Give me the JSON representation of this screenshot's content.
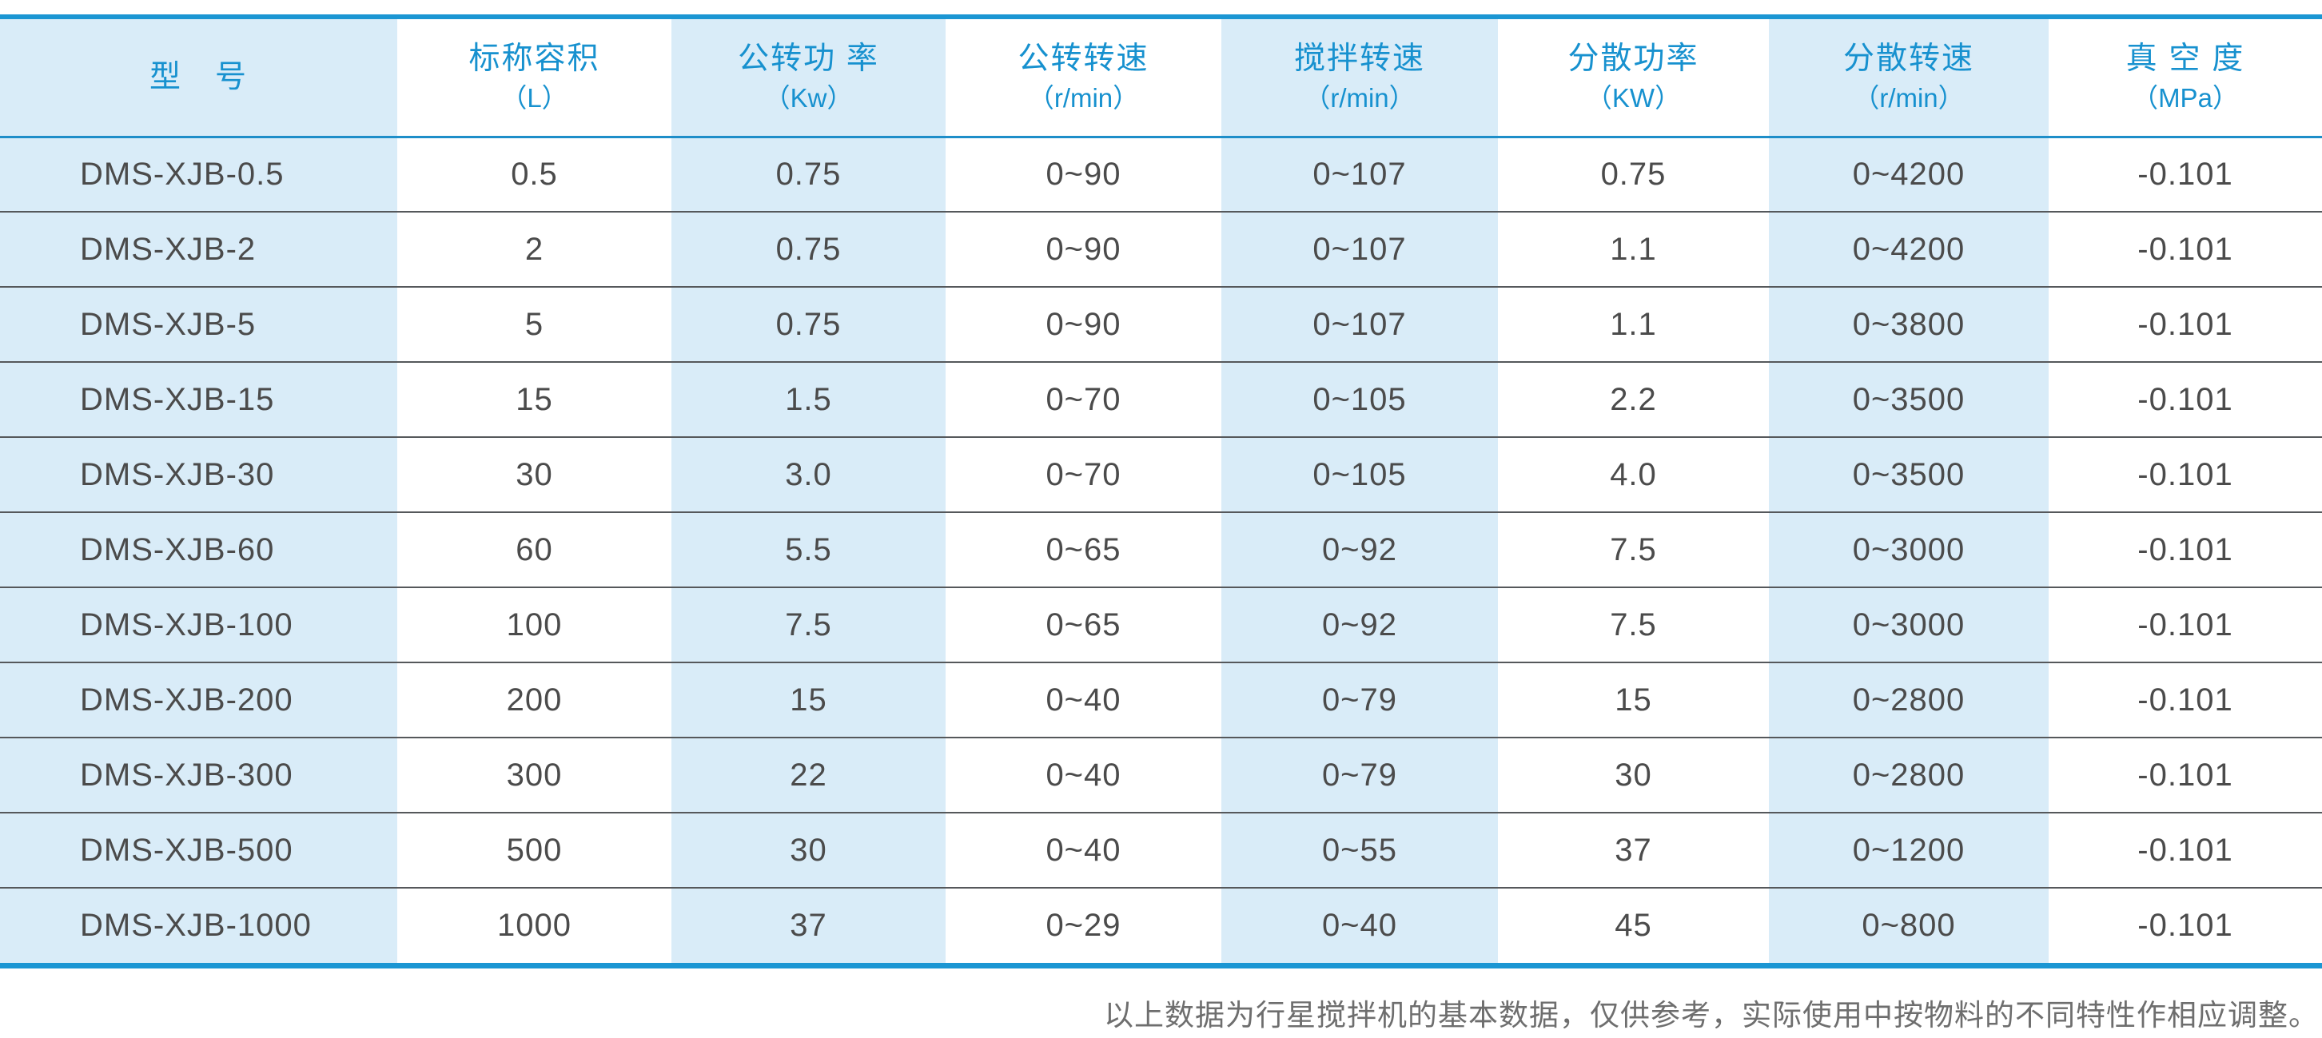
{
  "table": {
    "columns": [
      {
        "title": "型　号",
        "unit": ""
      },
      {
        "title": "标称容积",
        "unit": "（L）"
      },
      {
        "title": "公转功 率",
        "unit": "（Kw）"
      },
      {
        "title": "公转转速",
        "unit": "（r/min）"
      },
      {
        "title": "搅拌转速",
        "unit": "（r/min）"
      },
      {
        "title": "分散功率",
        "unit": "（KW）"
      },
      {
        "title": "分散转速",
        "unit": "（r/min）"
      },
      {
        "title": "真 空 度",
        "unit": "（MPa）"
      }
    ],
    "rows": [
      [
        "DMS-XJB-0.5",
        "0.5",
        "0.75",
        "0~90",
        "0~107",
        "0.75",
        "0~4200",
        "-0.101"
      ],
      [
        "DMS-XJB-2",
        "2",
        "0.75",
        "0~90",
        "0~107",
        "1.1",
        "0~4200",
        "-0.101"
      ],
      [
        "DMS-XJB-5",
        "5",
        "0.75",
        "0~90",
        "0~107",
        "1.1",
        "0~3800",
        "-0.101"
      ],
      [
        "DMS-XJB-15",
        "15",
        "1.5",
        "0~70",
        "0~105",
        "2.2",
        "0~3500",
        "-0.101"
      ],
      [
        "DMS-XJB-30",
        "30",
        "3.0",
        "0~70",
        "0~105",
        "4.0",
        "0~3500",
        "-0.101"
      ],
      [
        "DMS-XJB-60",
        "60",
        "5.5",
        "0~65",
        "0~92",
        "7.5",
        "0~3000",
        "-0.101"
      ],
      [
        "DMS-XJB-100",
        "100",
        "7.5",
        "0~65",
        "0~92",
        "7.5",
        "0~3000",
        "-0.101"
      ],
      [
        "DMS-XJB-200",
        "200",
        "15",
        "0~40",
        "0~79",
        "15",
        "0~2800",
        "-0.101"
      ],
      [
        "DMS-XJB-300",
        "300",
        "22",
        "0~40",
        "0~79",
        "30",
        "0~2800",
        "-0.101"
      ],
      [
        "DMS-XJB-500",
        "500",
        "30",
        "0~40",
        "0~55",
        "37",
        "0~1200",
        "-0.101"
      ],
      [
        "DMS-XJB-1000",
        "1000",
        "37",
        "0~29",
        "0~40",
        "45",
        "0~800",
        "-0.101"
      ]
    ]
  },
  "footnote": "以上数据为行星搅拌机的基本数据，仅供参考，实际使用中按物料的不同特性作相应调整。",
  "colors": {
    "accent_blue": "#1b96d3",
    "header_text_blue": "#1791cf",
    "header_underline_blue": "#1e8ec9",
    "cell_shade_blue": "#d9ecf8",
    "row_separator_gray": "#55585b",
    "data_text_gray": "#4b4b4b",
    "footnote_gray": "#6e6e6e"
  }
}
